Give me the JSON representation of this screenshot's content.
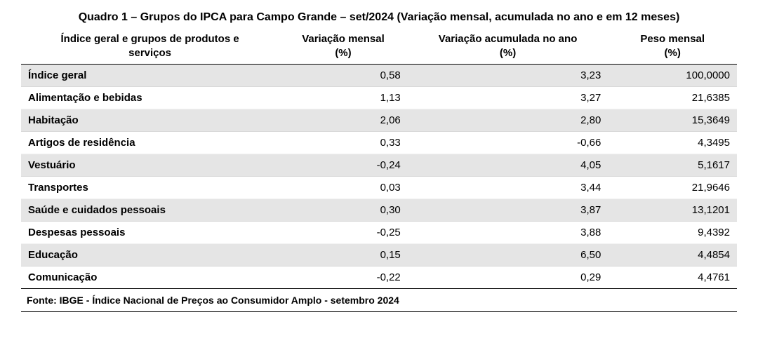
{
  "title": "Quadro 1 – Grupos do IPCA para Campo Grande – set/2024 (Variação mensal, acumulada no ano e em 12 meses)",
  "source": "Fonte: IBGE - Índice Nacional de Preços ao Consumidor Amplo - setembro 2024",
  "table": {
    "type": "table",
    "background_color": "#ffffff",
    "stripe_color": "#e5e5e5",
    "text_color": "#000000",
    "header_border_color": "#000000",
    "font_family": "Arial",
    "header_fontsize": 15,
    "body_fontsize": 15,
    "title_fontsize": 16,
    "columns": [
      {
        "key": "label",
        "header_line1": "Índice geral e grupos de produtos e",
        "header_line2": "serviços",
        "align": "left",
        "width_pct": 36
      },
      {
        "key": "vm",
        "header_line1": "Variação mensal",
        "header_line2": "(%)",
        "align": "right",
        "width_pct": 18
      },
      {
        "key": "va",
        "header_line1": "Variação acumulada no ano",
        "header_line2": "(%)",
        "align": "right",
        "width_pct": 28
      },
      {
        "key": "pm",
        "header_line1": "Peso mensal",
        "header_line2": "(%)",
        "align": "right",
        "width_pct": 18
      }
    ],
    "rows": [
      {
        "label": "Índice geral",
        "vm": "0,58",
        "va": "3,23",
        "pm": "100,0000"
      },
      {
        "label": "Alimentação e bebidas",
        "vm": "1,13",
        "va": "3,27",
        "pm": "21,6385"
      },
      {
        "label": "Habitação",
        "vm": "2,06",
        "va": "2,80",
        "pm": "15,3649"
      },
      {
        "label": "Artigos de residência",
        "vm": "0,33",
        "va": "-0,66",
        "pm": "4,3495"
      },
      {
        "label": "Vestuário",
        "vm": "-0,24",
        "va": "4,05",
        "pm": "5,1617"
      },
      {
        "label": "Transportes",
        "vm": "0,03",
        "va": "3,44",
        "pm": "21,9646"
      },
      {
        "label": "Saúde e cuidados pessoais",
        "vm": "0,30",
        "va": "3,87",
        "pm": "13,1201"
      },
      {
        "label": "Despesas pessoais",
        "vm": "-0,25",
        "va": "3,88",
        "pm": "9,4392"
      },
      {
        "label": "Educação",
        "vm": "0,15",
        "va": "6,50",
        "pm": "4,4854"
      },
      {
        "label": "Comunicação",
        "vm": "-0,22",
        "va": "0,29",
        "pm": "4,4761"
      }
    ]
  }
}
